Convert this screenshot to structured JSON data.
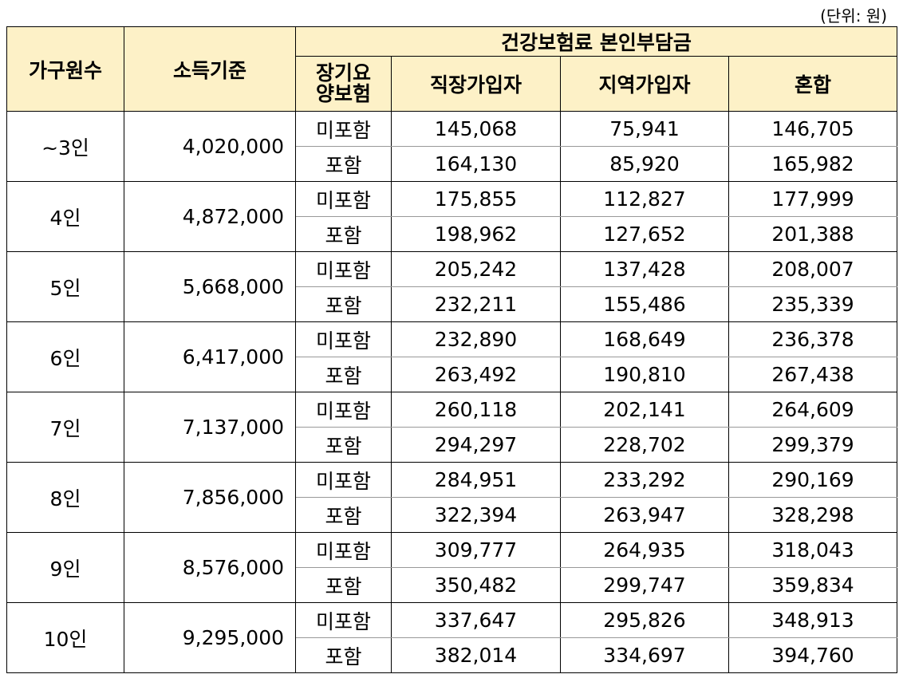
{
  "unit_note": "(단위: 원)",
  "header": {
    "household": "가구원수",
    "income": "소득기준",
    "premium_group": "건강보험료 본인부담금",
    "ltc": "장기요양보험",
    "workplace": "직장가입자",
    "regional": "지역가입자",
    "mixed": "혼합"
  },
  "rows": [
    {
      "household": "~3인",
      "income": "4,020,000",
      "sub": [
        {
          "ltc": "미포함",
          "workplace": "145,068",
          "regional": "75,941",
          "mixed": "146,705"
        },
        {
          "ltc": "포함",
          "workplace": "164,130",
          "regional": "85,920",
          "mixed": "165,982"
        }
      ]
    },
    {
      "household": "4인",
      "income": "4,872,000",
      "sub": [
        {
          "ltc": "미포함",
          "workplace": "175,855",
          "regional": "112,827",
          "mixed": "177,999"
        },
        {
          "ltc": "포함",
          "workplace": "198,962",
          "regional": "127,652",
          "mixed": "201,388"
        }
      ]
    },
    {
      "household": "5인",
      "income": "5,668,000",
      "sub": [
        {
          "ltc": "미포함",
          "workplace": "205,242",
          "regional": "137,428",
          "mixed": "208,007"
        },
        {
          "ltc": "포함",
          "workplace": "232,211",
          "regional": "155,486",
          "mixed": "235,339"
        }
      ]
    },
    {
      "household": "6인",
      "income": "6,417,000",
      "sub": [
        {
          "ltc": "미포함",
          "workplace": "232,890",
          "regional": "168,649",
          "mixed": "236,378"
        },
        {
          "ltc": "포함",
          "workplace": "263,492",
          "regional": "190,810",
          "mixed": "267,438"
        }
      ]
    },
    {
      "household": "7인",
      "income": "7,137,000",
      "sub": [
        {
          "ltc": "미포함",
          "workplace": "260,118",
          "regional": "202,141",
          "mixed": "264,609"
        },
        {
          "ltc": "포함",
          "workplace": "294,297",
          "regional": "228,702",
          "mixed": "299,379"
        }
      ]
    },
    {
      "household": "8인",
      "income": "7,856,000",
      "sub": [
        {
          "ltc": "미포함",
          "workplace": "284,951",
          "regional": "233,292",
          "mixed": "290,169"
        },
        {
          "ltc": "포함",
          "workplace": "322,394",
          "regional": "263,947",
          "mixed": "328,298"
        }
      ]
    },
    {
      "household": "9인",
      "income": "8,576,000",
      "sub": [
        {
          "ltc": "미포함",
          "workplace": "309,777",
          "regional": "264,935",
          "mixed": "318,043"
        },
        {
          "ltc": "포함",
          "workplace": "350,482",
          "regional": "299,747",
          "mixed": "359,834"
        }
      ]
    },
    {
      "household": "10인",
      "income": "9,295,000",
      "sub": [
        {
          "ltc": "미포함",
          "workplace": "337,647",
          "regional": "295,826",
          "mixed": "348,913"
        },
        {
          "ltc": "포함",
          "workplace": "382,014",
          "regional": "334,697",
          "mixed": "394,760"
        }
      ]
    }
  ]
}
